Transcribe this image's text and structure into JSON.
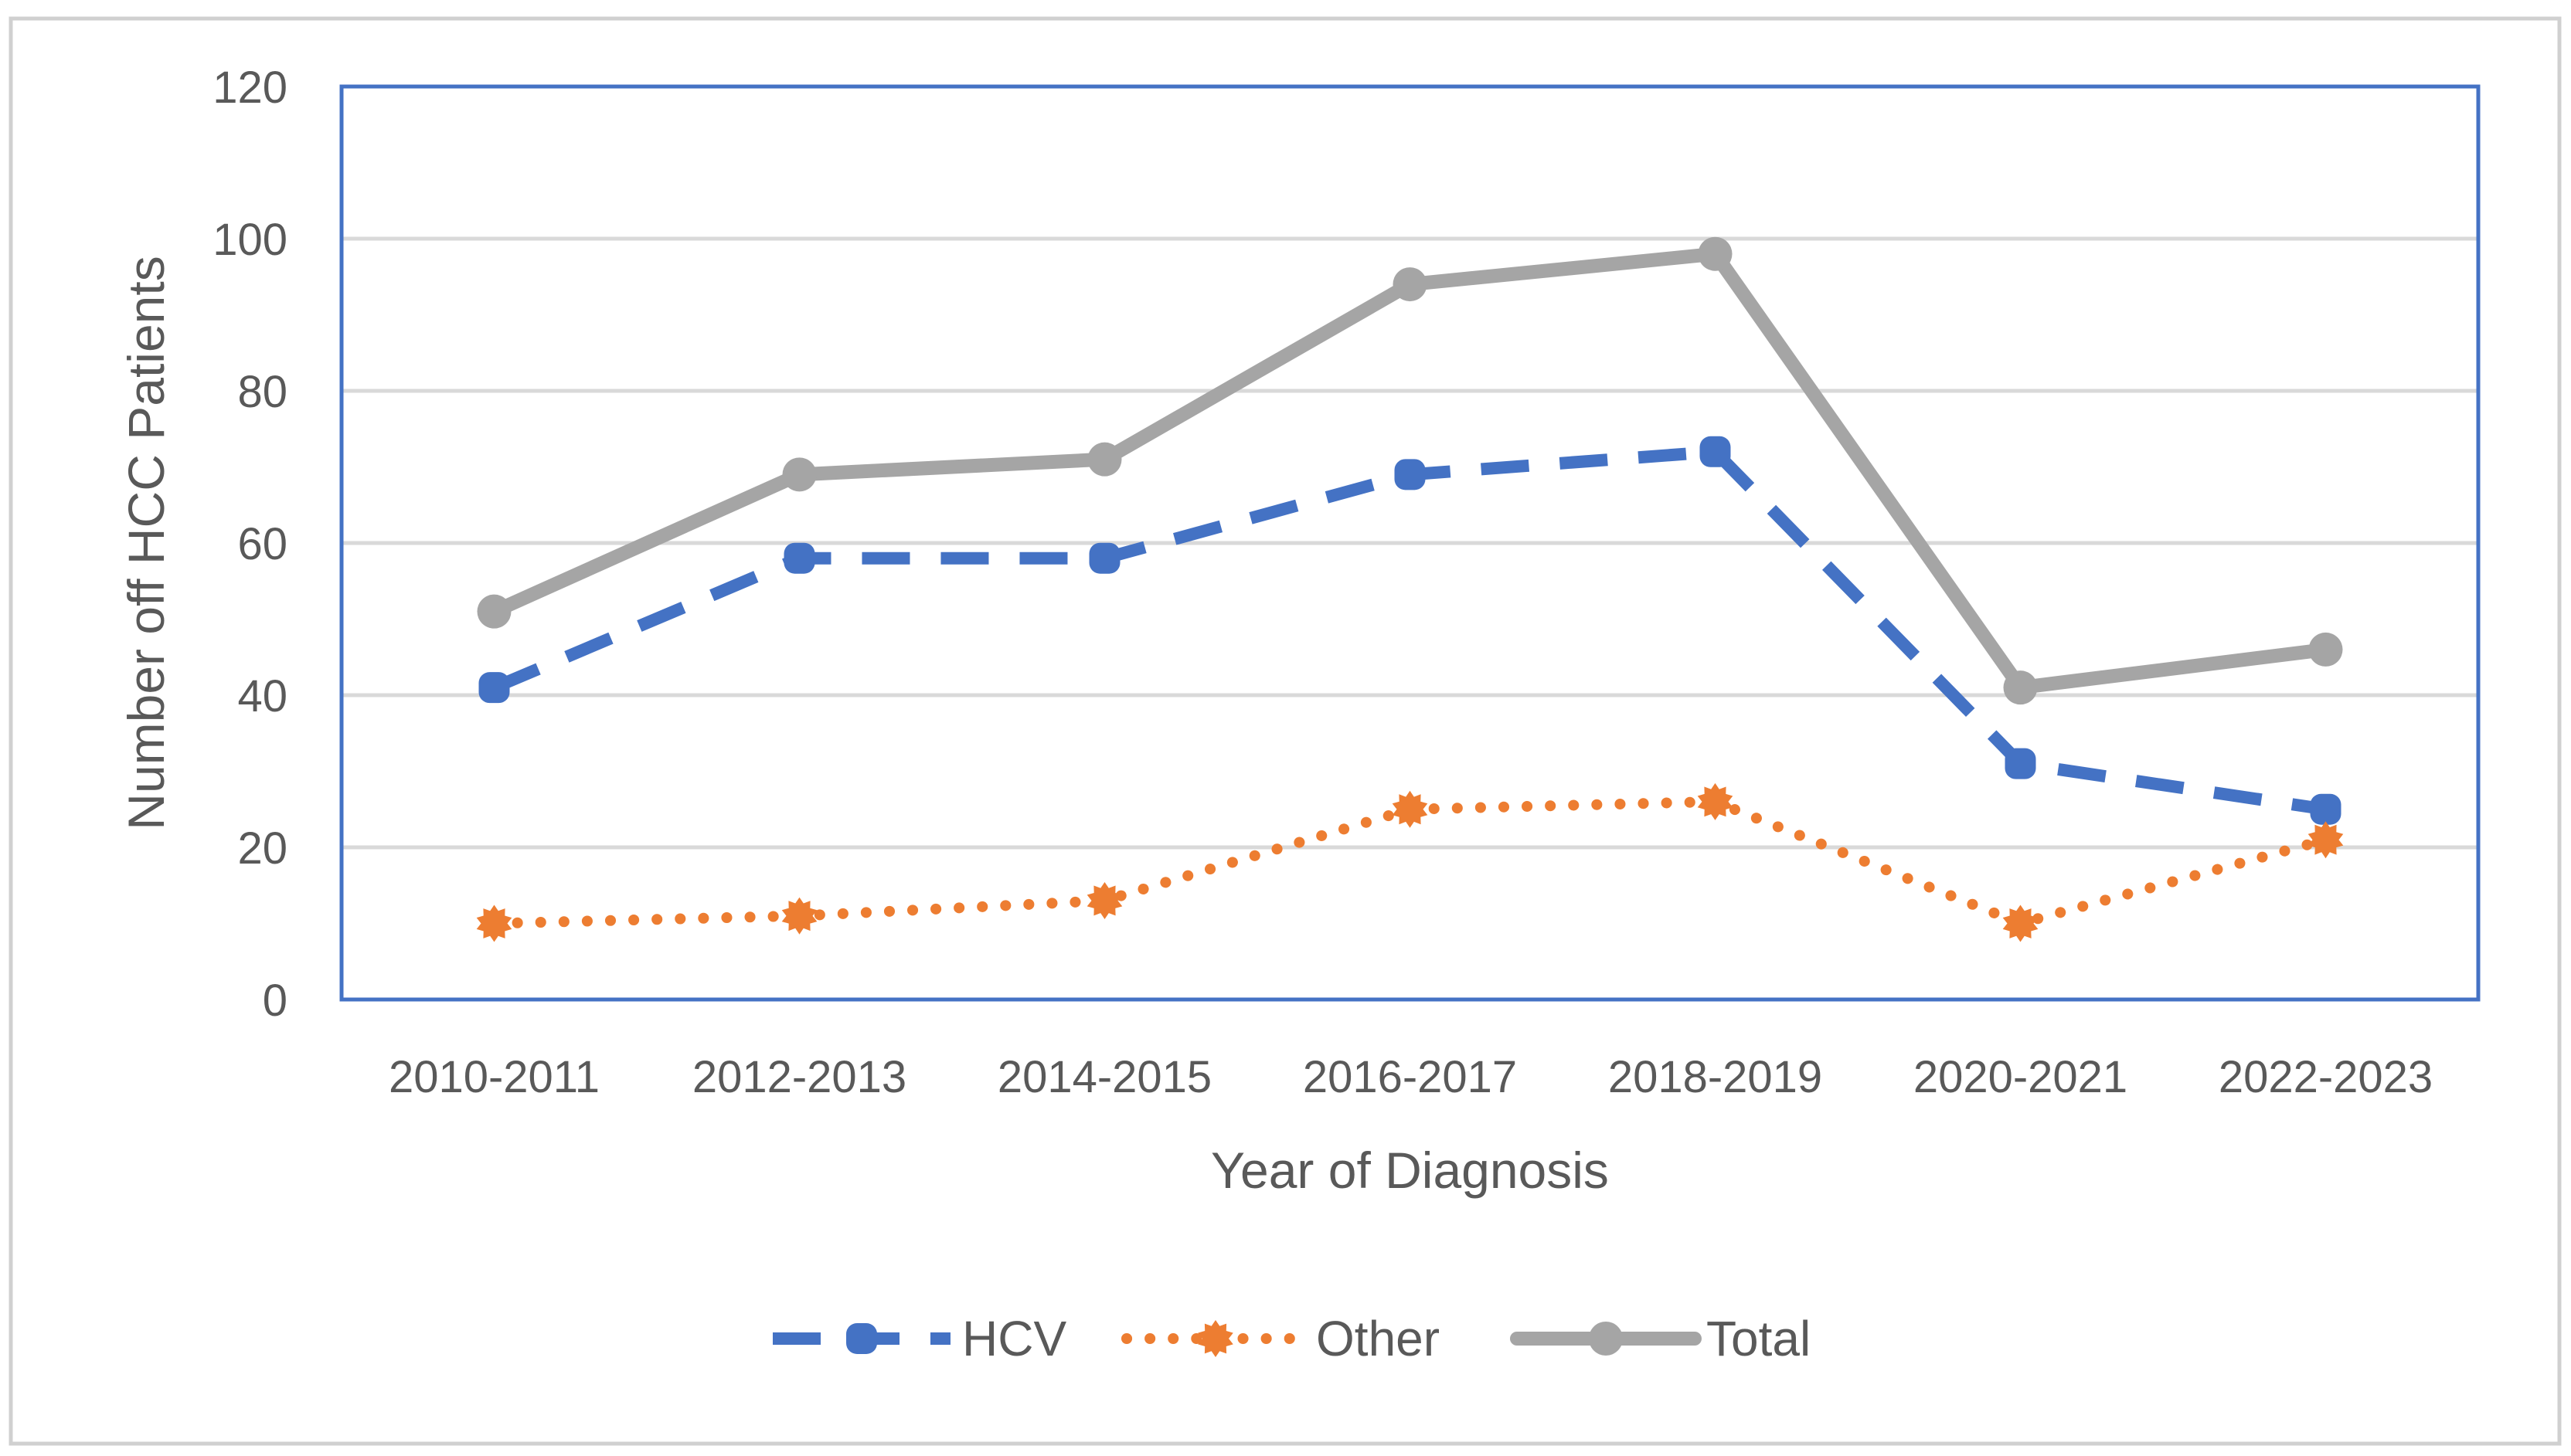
{
  "chart_data": {
    "type": "line",
    "title": "",
    "xlabel": "Year of Diagnosis",
    "ylabel": "Number off HCC Patients",
    "categories": [
      "2010-2011",
      "2012-2013",
      "2014-2015",
      "2016-2017",
      "2018-2019",
      "2020-2021",
      "2022-2023"
    ],
    "ylim": [
      0,
      120
    ],
    "yticks": [
      0,
      20,
      40,
      60,
      80,
      100,
      120
    ],
    "grid": true,
    "legend_position": "bottom",
    "series": [
      {
        "name": "HCV",
        "values": [
          41,
          58,
          58,
          69,
          72,
          31,
          25
        ],
        "color": "#4472C4",
        "style": "dashed"
      },
      {
        "name": "Other",
        "values": [
          10,
          11,
          13,
          25,
          26,
          10,
          21
        ],
        "color": "#ED7D31",
        "style": "dotted"
      },
      {
        "name": "Total",
        "values": [
          51,
          69,
          71,
          94,
          98,
          41,
          46
        ],
        "color": "#A5A5A5",
        "style": "solid"
      }
    ],
    "colors": {
      "frame": "#4472C4",
      "grid": "#D9D9D9",
      "text": "#595959",
      "outer_border": "#D0D0D0"
    }
  }
}
